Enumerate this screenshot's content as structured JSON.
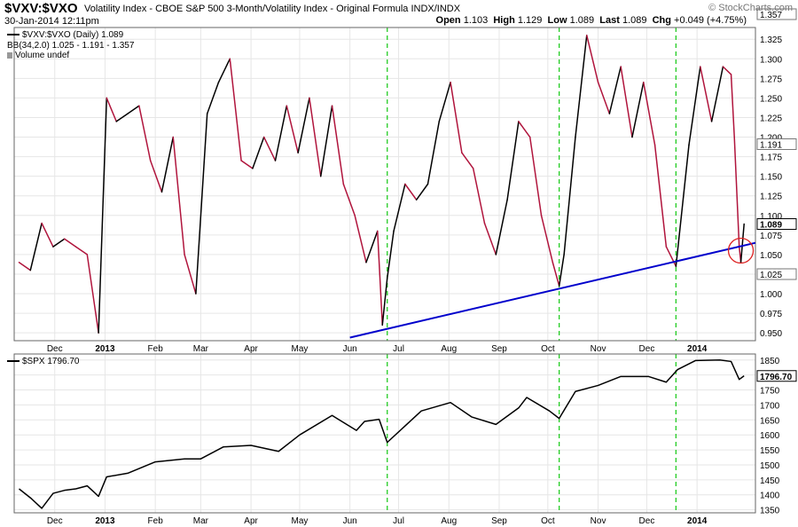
{
  "header": {
    "symbol": "$VXV:$VXO",
    "description": "Volatility Index - CBOE S&P 500 3-Month/Volatility Index - Original Formula INDX/INDX",
    "datetime": "30-Jan-2014 12:11pm",
    "brand": "© StockCharts.com",
    "open_label": "Open",
    "open": "1.103",
    "high_label": "High",
    "high": "1.129",
    "low_label": "Low",
    "low": "1.089",
    "last_label": "Last",
    "last": "1.089",
    "chg_label": "Chg",
    "chg": "+0.049 (+4.75%)"
  },
  "legend": {
    "main": "$VXV:$VXO (Daily) 1.089",
    "bb": "BB(34,2.0) 1.025 - 1.191 - 1.357",
    "volume": "Volume undef",
    "spx": "$SPX 1796.70"
  },
  "colors": {
    "up": "#000000",
    "down": "#b0143c",
    "trendline": "#0000cc",
    "vline": "#22cc22",
    "circle": "#dd2222"
  },
  "chart_data": [
    {
      "type": "line",
      "name": "$VXV:$VXO",
      "x": [
        "2012-11-09",
        "2012-11-16",
        "2012-11-23",
        "2012-11-30",
        "2012-12-07",
        "2012-12-14",
        "2012-12-21",
        "2012-12-28",
        "2013-01-02",
        "2013-01-08",
        "2013-01-15",
        "2013-01-22",
        "2013-01-29",
        "2013-02-05",
        "2013-02-12",
        "2013-02-19",
        "2013-02-26",
        "2013-03-05",
        "2013-03-12",
        "2013-03-19",
        "2013-03-26",
        "2013-04-02",
        "2013-04-09",
        "2013-04-16",
        "2013-04-23",
        "2013-04-30",
        "2013-05-07",
        "2013-05-14",
        "2013-05-21",
        "2013-05-28",
        "2013-06-04",
        "2013-06-11",
        "2013-06-18",
        "2013-06-21",
        "2013-06-24",
        "2013-06-28",
        "2013-07-05",
        "2013-07-12",
        "2013-07-19",
        "2013-07-26",
        "2013-08-02",
        "2013-08-09",
        "2013-08-16",
        "2013-08-23",
        "2013-08-30",
        "2013-09-06",
        "2013-09-13",
        "2013-09-20",
        "2013-09-27",
        "2013-10-04",
        "2013-10-08",
        "2013-10-11",
        "2013-10-18",
        "2013-10-25",
        "2013-11-01",
        "2013-11-08",
        "2013-11-15",
        "2013-11-22",
        "2013-11-29",
        "2013-12-06",
        "2013-12-13",
        "2013-12-19",
        "2013-12-27",
        "2014-01-03",
        "2014-01-10",
        "2014-01-17",
        "2014-01-22",
        "2014-01-24",
        "2014-01-27",
        "2014-01-28",
        "2014-01-30"
      ],
      "y": [
        1.04,
        1.03,
        1.09,
        1.06,
        1.07,
        1.06,
        1.05,
        0.95,
        1.25,
        1.22,
        1.23,
        1.24,
        1.17,
        1.13,
        1.2,
        1.05,
        1.0,
        1.23,
        1.27,
        1.3,
        1.17,
        1.16,
        1.2,
        1.17,
        1.24,
        1.18,
        1.25,
        1.15,
        1.24,
        1.14,
        1.1,
        1.04,
        1.08,
        0.96,
        1.02,
        1.08,
        1.14,
        1.12,
        1.14,
        1.22,
        1.27,
        1.18,
        1.16,
        1.09,
        1.05,
        1.12,
        1.22,
        1.2,
        1.1,
        1.04,
        1.01,
        1.05,
        1.2,
        1.33,
        1.27,
        1.23,
        1.29,
        1.2,
        1.27,
        1.19,
        1.06,
        1.035,
        1.19,
        1.29,
        1.22,
        1.29,
        1.28,
        1.2,
        1.06,
        1.04,
        1.089
      ],
      "ylim": [
        0.94,
        1.34
      ],
      "yticks": [
        0.95,
        0.975,
        1.0,
        1.025,
        1.05,
        1.075,
        1.1,
        1.125,
        1.15,
        1.175,
        1.2,
        1.225,
        1.25,
        1.275,
        1.3,
        1.325
      ],
      "ytick_labels": [
        "0.950",
        "0.975",
        "1.000",
        "1.025",
        "1.050",
        "1.075",
        "1.100",
        "1.125",
        "1.150",
        "1.175",
        "1.200",
        "1.225",
        "1.250",
        "1.275",
        "1.300",
        "1.325"
      ],
      "price_labels": [
        {
          "value": 1.357,
          "text": "1.357"
        },
        {
          "value": 1.191,
          "text": "1.191"
        },
        {
          "value": 1.089,
          "text": "1.089",
          "highlight": true
        },
        {
          "value": 1.025,
          "text": "1.025"
        }
      ],
      "trendline": [
        [
          "2013-06-01",
          0.944
        ],
        [
          "2014-02-06",
          1.065
        ]
      ],
      "circle_at": [
        "2014-01-28",
        1.055
      ],
      "grid": true
    },
    {
      "type": "line",
      "name": "$SPX",
      "x": [
        "2012-11-09",
        "2012-11-16",
        "2012-11-23",
        "2012-11-30",
        "2012-12-07",
        "2012-12-14",
        "2012-12-21",
        "2012-12-28",
        "2013-01-02",
        "2013-01-15",
        "2013-02-01",
        "2013-02-19",
        "2013-03-01",
        "2013-03-15",
        "2013-04-01",
        "2013-04-18",
        "2013-05-01",
        "2013-05-21",
        "2013-06-05",
        "2013-06-10",
        "2013-06-19",
        "2013-06-24",
        "2013-07-05",
        "2013-07-15",
        "2013-08-02",
        "2013-08-15",
        "2013-08-30",
        "2013-09-13",
        "2013-09-18",
        "2013-10-02",
        "2013-10-08",
        "2013-10-18",
        "2013-11-01",
        "2013-11-15",
        "2013-12-02",
        "2013-12-13",
        "2013-12-20",
        "2013-12-31",
        "2014-01-15",
        "2014-01-22",
        "2014-01-27",
        "2014-01-30"
      ],
      "y": [
        1420,
        1390,
        1355,
        1405,
        1415,
        1420,
        1430,
        1395,
        1460,
        1472,
        1510,
        1520,
        1520,
        1560,
        1565,
        1545,
        1600,
        1665,
        1615,
        1645,
        1652,
        1575,
        1630,
        1680,
        1708,
        1660,
        1635,
        1690,
        1725,
        1680,
        1655,
        1745,
        1765,
        1795,
        1795,
        1776,
        1818,
        1848,
        1850,
        1845,
        1785,
        1797
      ],
      "ylim": [
        1340,
        1870
      ],
      "yticks": [
        1350,
        1400,
        1450,
        1500,
        1550,
        1600,
        1650,
        1700,
        1750,
        1800,
        1850
      ],
      "ytick_labels": [
        "1350",
        "1400",
        "1450",
        "1500",
        "1550",
        "1600",
        "1650",
        "1700",
        "1750",
        "1800",
        "1850"
      ],
      "price_labels": [
        {
          "value": 1796.7,
          "text": "1796.70",
          "highlight": true
        }
      ],
      "grid": true
    }
  ],
  "x_axis": {
    "xlim": [
      "2012-11-06",
      "2014-02-06"
    ],
    "ticks": [
      {
        "date": "2012-12-01",
        "label": "Dec",
        "bold": false
      },
      {
        "date": "2013-01-01",
        "label": "2013",
        "bold": true
      },
      {
        "date": "2013-02-01",
        "label": "Feb",
        "bold": false
      },
      {
        "date": "2013-03-01",
        "label": "Mar",
        "bold": false
      },
      {
        "date": "2013-04-01",
        "label": "Apr",
        "bold": false
      },
      {
        "date": "2013-05-01",
        "label": "May",
        "bold": false
      },
      {
        "date": "2013-06-01",
        "label": "Jun",
        "bold": false
      },
      {
        "date": "2013-07-01",
        "label": "Jul",
        "bold": false
      },
      {
        "date": "2013-08-01",
        "label": "Aug",
        "bold": false
      },
      {
        "date": "2013-09-01",
        "label": "Sep",
        "bold": false
      },
      {
        "date": "2013-10-01",
        "label": "Oct",
        "bold": false
      },
      {
        "date": "2013-11-01",
        "label": "Nov",
        "bold": false
      },
      {
        "date": "2013-12-01",
        "label": "Dec",
        "bold": false
      },
      {
        "date": "2014-01-01",
        "label": "2014",
        "bold": true
      }
    ],
    "vertical_markers": [
      "2013-06-24",
      "2013-10-08",
      "2013-12-19"
    ]
  }
}
